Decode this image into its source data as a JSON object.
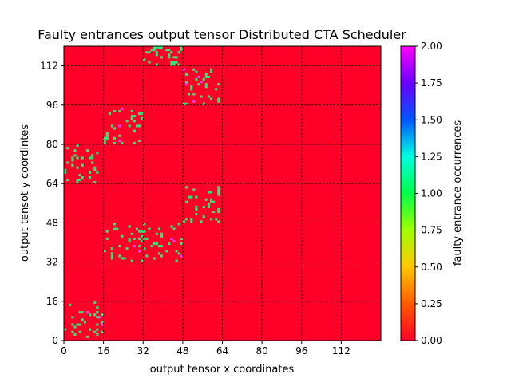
{
  "chart_data": {
    "type": "heatmap",
    "title": "Faulty entrances output tensor Distributed CTA Scheduler",
    "xlabel": "output tensor x coordinates",
    "ylabel": "output tensot y coordintes",
    "colorbar_label": "faulty entrance occurrences",
    "xlim": [
      0,
      128
    ],
    "ylim": [
      0,
      120
    ],
    "xticks": [
      "0",
      "16",
      "32",
      "48",
      "64",
      "80",
      "96",
      "112"
    ],
    "yticks": [
      "0",
      "16",
      "32",
      "48",
      "64",
      "80",
      "96",
      "112"
    ],
    "colorbar_range": [
      0,
      2
    ],
    "colorbar_ticks": [
      "0.00",
      "0.25",
      "0.50",
      "0.75",
      "1.00",
      "1.25",
      "1.50",
      "1.75",
      "2.00"
    ],
    "colormap": "gist_rainbow_r",
    "grid": true,
    "background_value": 0,
    "hot_regions": [
      {
        "x0": 0,
        "x1": 16,
        "y0": 0,
        "y1": 16,
        "value": 1
      },
      {
        "x0": 0,
        "x1": 16,
        "y0": 64,
        "y1": 80,
        "value": 1
      },
      {
        "x0": 16,
        "x1": 32,
        "y0": 32,
        "y1": 48,
        "value": 1
      },
      {
        "x0": 16,
        "x1": 32,
        "y0": 80,
        "y1": 96,
        "value": 1
      },
      {
        "x0": 32,
        "x1": 48,
        "y0": 32,
        "y1": 48,
        "value": 1
      },
      {
        "x0": 32,
        "x1": 48,
        "y0": 112,
        "y1": 120,
        "value": 1
      },
      {
        "x0": 48,
        "x1": 64,
        "y0": 48,
        "y1": 64,
        "value": 1
      },
      {
        "x0": 48,
        "x1": 64,
        "y0": 96,
        "y1": 112,
        "value": 1
      }
    ]
  }
}
